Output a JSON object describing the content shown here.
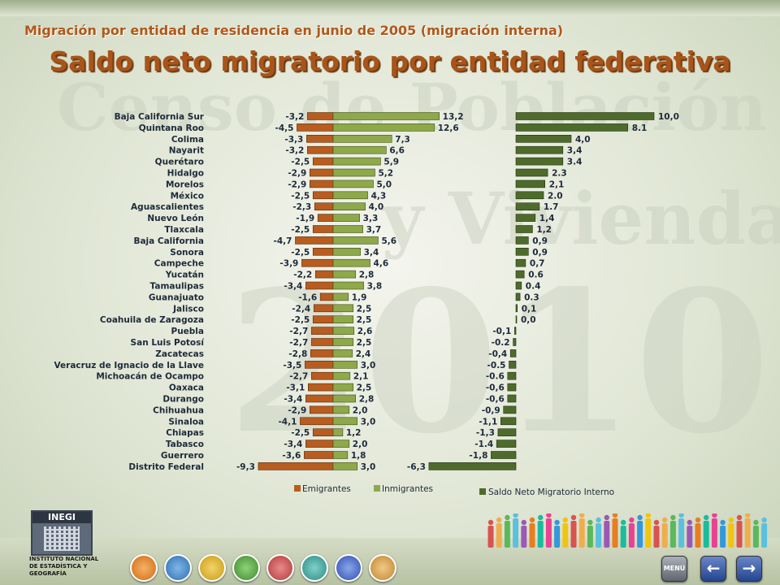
{
  "header": {
    "subtitle": "Migración por entidad de residencia en junio de 2005 (migración interna)",
    "title": "Saldo neto migratorio por entidad federativa"
  },
  "watermark": {
    "line1": "Censo de Población",
    "line2": "y Vivienda",
    "year": "2010"
  },
  "colors": {
    "emigrantes": "#b85c20",
    "inmigrantes": "#8ea84a",
    "saldo": "#4e6b2c",
    "title": "#a8541a"
  },
  "chart_data": [
    {
      "type": "bar",
      "orientation": "horizontal",
      "categories": [
        "Baja California Sur",
        "Quintana Roo",
        "Colima",
        "Nayarit",
        "Querétaro",
        "Hidalgo",
        "Morelos",
        "México",
        "Aguascalientes",
        "Nuevo León",
        "Tlaxcala",
        "Baja California",
        "Sonora",
        "Campeche",
        "Yucatán",
        "Tamaulipas",
        "Guanajuato",
        "Jalisco",
        "Coahuila de Zaragoza",
        "Puebla",
        "San Luis Potosí",
        "Zacatecas",
        "Veracruz de Ignacio de la Llave",
        "Michoacán de Ocampo",
        "Oaxaca",
        "Durango",
        "Chihuahua",
        "Sinaloa",
        "Chiapas",
        "Tabasco",
        "Guerrero",
        "Distrito Federal"
      ],
      "series": [
        {
          "name": "Emigrantes",
          "values": [
            -3.2,
            -4.5,
            -3.3,
            -3.2,
            -2.5,
            -2.9,
            -2.9,
            -2.5,
            -2.3,
            -1.9,
            -2.5,
            -4.7,
            -2.5,
            -3.9,
            -2.2,
            -3.4,
            -1.6,
            -2.4,
            -2.5,
            -2.7,
            -2.7,
            -2.8,
            -3.5,
            -2.7,
            -3.1,
            -3.4,
            -2.9,
            -4.1,
            -2.5,
            -3.4,
            -3.6,
            -9.3
          ],
          "labels": [
            "-3,2",
            "-4,5",
            "-3,3",
            "-3,2",
            "-2,5",
            "-2,9",
            "-2,9",
            "-2,5",
            "-2,3",
            "-1,9",
            "-2,5",
            "-4,7",
            "-2,5",
            "-3,9",
            "-2,2",
            "-3,4",
            "-1,6",
            "-2,4",
            "-2,5",
            "-2,7",
            "-2,7",
            "-2,8",
            "-3,5",
            "-2,7",
            "-3,1",
            "-3,4",
            "-2,9",
            "-4,1",
            "-2,5",
            "-3,4",
            "-3,6",
            "-9,3"
          ]
        },
        {
          "name": "Inmigrantes",
          "values": [
            13.2,
            12.6,
            7.3,
            6.6,
            5.9,
            5.2,
            5.0,
            4.3,
            4.0,
            3.3,
            3.7,
            5.6,
            3.4,
            4.6,
            2.8,
            3.8,
            1.9,
            2.5,
            2.5,
            2.6,
            2.5,
            2.4,
            3.0,
            2.1,
            2.5,
            2.8,
            2.0,
            3.0,
            1.2,
            2.0,
            1.8,
            3.0
          ],
          "labels": [
            "13,2",
            "12,6",
            "7,3",
            "6,6",
            "5,9",
            "5,2",
            "5,0",
            "4,3",
            "4,0",
            "3,3",
            "3,7",
            "5,6",
            "3,4",
            "4,6",
            "2,8",
            "3,8",
            "1,9",
            "2,5",
            "2,5",
            "2,6",
            "2,5",
            "2,4",
            "3,0",
            "2,1",
            "2,5",
            "2,8",
            "2,0",
            "3,0",
            "1,2",
            "2,0",
            "1,8",
            "3,0"
          ]
        }
      ]
    },
    {
      "type": "bar",
      "orientation": "horizontal",
      "categories": [
        "Baja California Sur",
        "Quintana Roo",
        "Colima",
        "Nayarit",
        "Querétaro",
        "Hidalgo",
        "Morelos",
        "México",
        "Aguascalientes",
        "Nuevo León",
        "Tlaxcala",
        "Baja California",
        "Sonora",
        "Campeche",
        "Yucatán",
        "Tamaulipas",
        "Guanajuato",
        "Jalisco",
        "Coahuila de Zaragoza",
        "Puebla",
        "San Luis Potosí",
        "Zacatecas",
        "Veracruz de Ignacio de la Llave",
        "Michoacán de Ocampo",
        "Oaxaca",
        "Durango",
        "Chihuahua",
        "Sinaloa",
        "Chiapas",
        "Tabasco",
        "Guerrero",
        "Distrito Federal"
      ],
      "series": [
        {
          "name": "Saldo Neto Migratorio Interno",
          "values": [
            10.0,
            8.1,
            4.0,
            3.4,
            3.4,
            2.3,
            2.1,
            2.0,
            1.7,
            1.4,
            1.2,
            0.9,
            0.9,
            0.7,
            0.6,
            0.4,
            0.3,
            0.1,
            0.0,
            -0.1,
            -0.2,
            -0.4,
            -0.5,
            -0.6,
            -0.6,
            -0.6,
            -0.9,
            -1.1,
            -1.3,
            -1.4,
            -1.8,
            -6.3
          ],
          "labels": [
            "10,0",
            "8.1",
            "4,0",
            "3,4",
            "3.4",
            "2.3",
            "2,1",
            "2.0",
            "1.7",
            "1,4",
            "1,2",
            "0,9",
            "0,9",
            "0,7",
            "0.6",
            "0.4",
            "0.3",
            "0,1",
            "0,0",
            "-0,1",
            "-0.2",
            "-0,4",
            "-0.5",
            "-0.6",
            "-0,6",
            "-0,6",
            "-0,9",
            "-1,1",
            "-1,3",
            "-1.4",
            "-1,8",
            "-6,3"
          ]
        }
      ]
    }
  ],
  "legend": {
    "emigrantes": "Emigrantes",
    "inmigrantes": "Inmigrantes",
    "saldo": "Saldo Neto Migratorio Interno"
  },
  "footer": {
    "logo_text": "INEGI",
    "institution_line1": "INSTITUTO NACIONAL",
    "institution_line2": "DE ESTADÍSTICA Y GEOGRAFÍA",
    "menu_label": "MENÚ",
    "prev_icon": "arrow-left-icon",
    "next_icon": "arrow-right-icon"
  }
}
